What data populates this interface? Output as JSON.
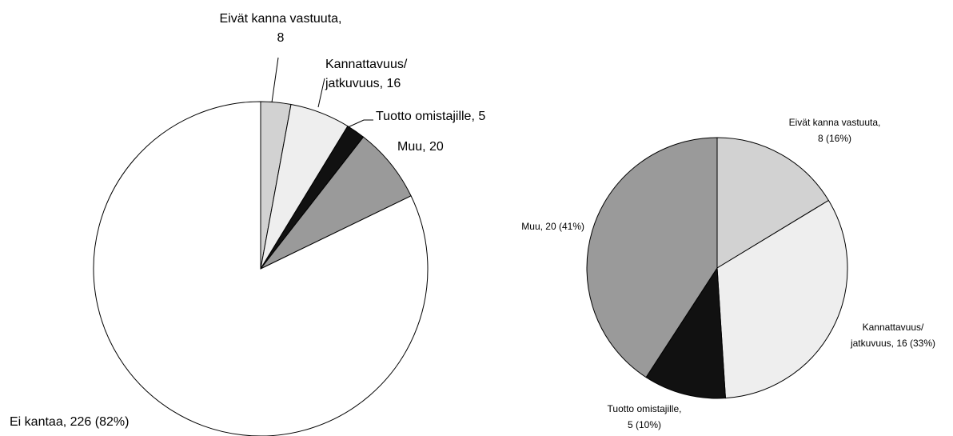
{
  "chart_data": [
    {
      "type": "pie",
      "values": [
        8,
        16,
        5,
        20,
        226
      ],
      "value_labels": [
        [
          "Eivät kanna vastuuta,",
          "8"
        ],
        [
          "Kannattavuus/",
          "jatkuvuus, 16"
        ],
        [
          "Tuotto omistajille, 5"
        ],
        [
          "Muu, 20"
        ],
        [
          "Ei kantaa, 226 (82%)"
        ]
      ],
      "colors": [
        "#d2d2d2",
        "#eeeeee",
        "#111111",
        "#9a9a9a",
        "#ffffff"
      ]
    },
    {
      "type": "pie",
      "values": [
        8,
        16,
        5,
        20
      ],
      "value_labels": [
        [
          "Eivät kanna vastuuta,",
          "8 (16%)"
        ],
        [
          "Kannattavuus/",
          "jatkuvuus, 16 (33%)"
        ],
        [
          "Tuotto omistajille,",
          "5 (10%)"
        ],
        [
          "Muu, 20 (41%)"
        ]
      ],
      "colors": [
        "#d2d2d2",
        "#eeeeee",
        "#111111",
        "#9a9a9a"
      ]
    }
  ]
}
